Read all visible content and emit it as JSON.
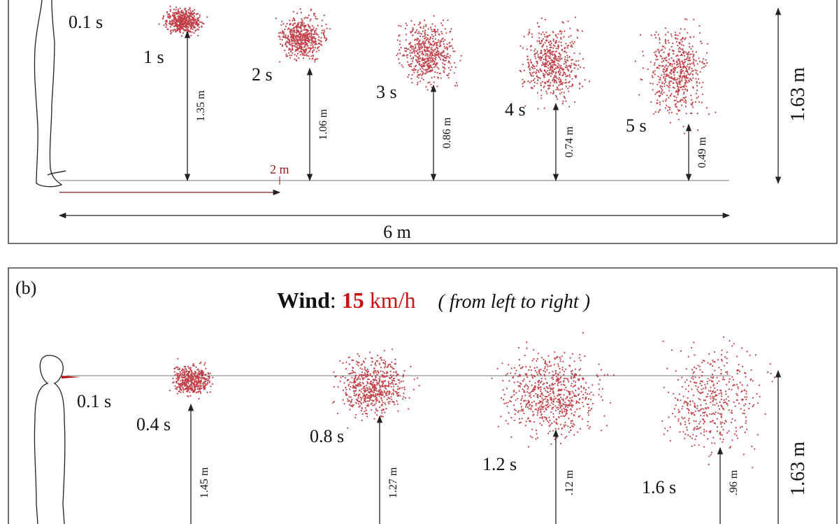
{
  "panel_a": {
    "start_time": "0.1 s",
    "times": [
      "1 s",
      "2 s",
      "3 s",
      "4 s",
      "5 s"
    ],
    "heights": [
      "1.35 m",
      "1.06 m",
      "0.86 m",
      "0.74 m",
      "0.49 m"
    ],
    "distance_marker": "2 m",
    "total_distance": "6 m",
    "person_height": "1.63 m"
  },
  "panel_b": {
    "label": "(b)",
    "wind_word": "Wind",
    "colon": ":",
    "wind_speed": "15",
    "wind_unit": "km/h",
    "wind_direction": "( from left to right )",
    "start_time": "0.1 s",
    "times": [
      "0.4 s",
      "0.8 s",
      "1.2 s",
      "1.6 s"
    ],
    "heights": [
      "1.45 m",
      "1.27 m",
      ".12 m",
      ".96 m"
    ],
    "person_height": "1.63 m"
  }
}
